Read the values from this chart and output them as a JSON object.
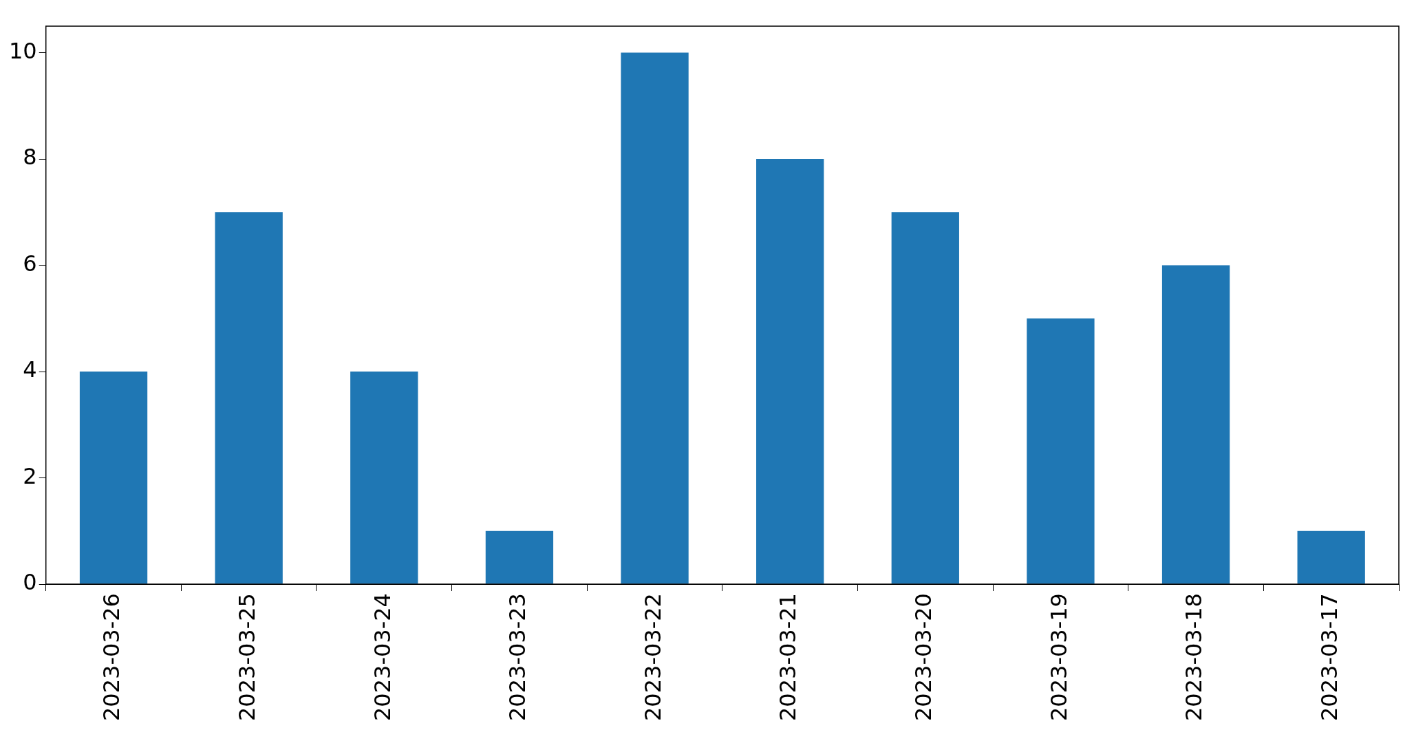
{
  "chart_data": {
    "type": "bar",
    "categories": [
      "2023-03-26",
      "2023-03-25",
      "2023-03-24",
      "2023-03-23",
      "2023-03-22",
      "2023-03-21",
      "2023-03-20",
      "2023-03-19",
      "2023-03-18",
      "2023-03-17"
    ],
    "values": [
      4,
      7,
      4,
      1,
      10,
      8,
      7,
      5,
      6,
      1
    ],
    "color": "#1f77b4",
    "ylim": [
      0,
      10.5
    ],
    "yticks": [
      0,
      2,
      4,
      6,
      8,
      10
    ],
    "grid": false,
    "legend": false
  }
}
